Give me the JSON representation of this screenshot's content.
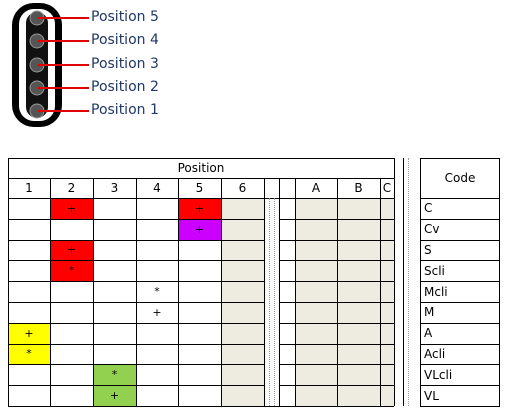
{
  "switch": {
    "positions": [
      "Position 5",
      "Position 4",
      "Position 3",
      "Position 2",
      "Position 1"
    ]
  },
  "table": {
    "header": "Position",
    "columns": [
      "1",
      "2",
      "3",
      "4",
      "5",
      "6",
      "",
      "A",
      "B",
      "C"
    ],
    "code_header": "Code",
    "rows": [
      {
        "code": "C",
        "cells": [
          "",
          "+",
          "",
          "",
          "+",
          "",
          "",
          "",
          "",
          ""
        ]
      },
      {
        "code": "Cv",
        "cells": [
          "",
          "",
          "",
          "",
          "+",
          "",
          "",
          "",
          "",
          ""
        ]
      },
      {
        "code": "S",
        "cells": [
          "",
          "+",
          "",
          "",
          "",
          "",
          "",
          "",
          "",
          ""
        ]
      },
      {
        "code": "Scli",
        "cells": [
          "",
          "*",
          "",
          "",
          "",
          "",
          "",
          "",
          "",
          ""
        ]
      },
      {
        "code": "Mcli",
        "cells": [
          "",
          "",
          "",
          "*",
          "",
          "",
          "",
          "",
          "",
          ""
        ]
      },
      {
        "code": "M",
        "cells": [
          "",
          "",
          "",
          "+",
          "",
          "",
          "",
          "",
          "",
          ""
        ]
      },
      {
        "code": "A",
        "cells": [
          "+",
          "",
          "",
          "",
          "",
          "",
          "",
          "",
          "",
          ""
        ]
      },
      {
        "code": "Acli",
        "cells": [
          "*",
          "",
          "",
          "",
          "",
          "",
          "",
          "",
          "",
          ""
        ]
      },
      {
        "code": "VLcli",
        "cells": [
          "",
          "",
          "*",
          "",
          "",
          "",
          "",
          "",
          "",
          ""
        ]
      },
      {
        "code": "VL",
        "cells": [
          "",
          "",
          "+",
          "",
          "",
          "",
          "",
          "",
          "",
          ""
        ]
      }
    ],
    "fills": [
      {
        "row": 0,
        "col": 1,
        "color": "#ff0000"
      },
      {
        "row": 0,
        "col": 4,
        "color": "#ff0000"
      },
      {
        "row": 1,
        "col": 4,
        "color": "#cc00ff"
      },
      {
        "row": 2,
        "col": 1,
        "color": "#ff0000"
      },
      {
        "row": 3,
        "col": 1,
        "color": "#ff0000"
      },
      {
        "row": 6,
        "col": 0,
        "color": "#ffff00"
      },
      {
        "row": 7,
        "col": 0,
        "color": "#ffff00"
      },
      {
        "row": 8,
        "col": 2,
        "color": "#92d050"
      },
      {
        "row": 9,
        "col": 2,
        "color": "#92d050"
      }
    ],
    "shaded_color": "#eeece1",
    "shaded_columns": [
      5,
      7,
      8,
      9
    ]
  }
}
